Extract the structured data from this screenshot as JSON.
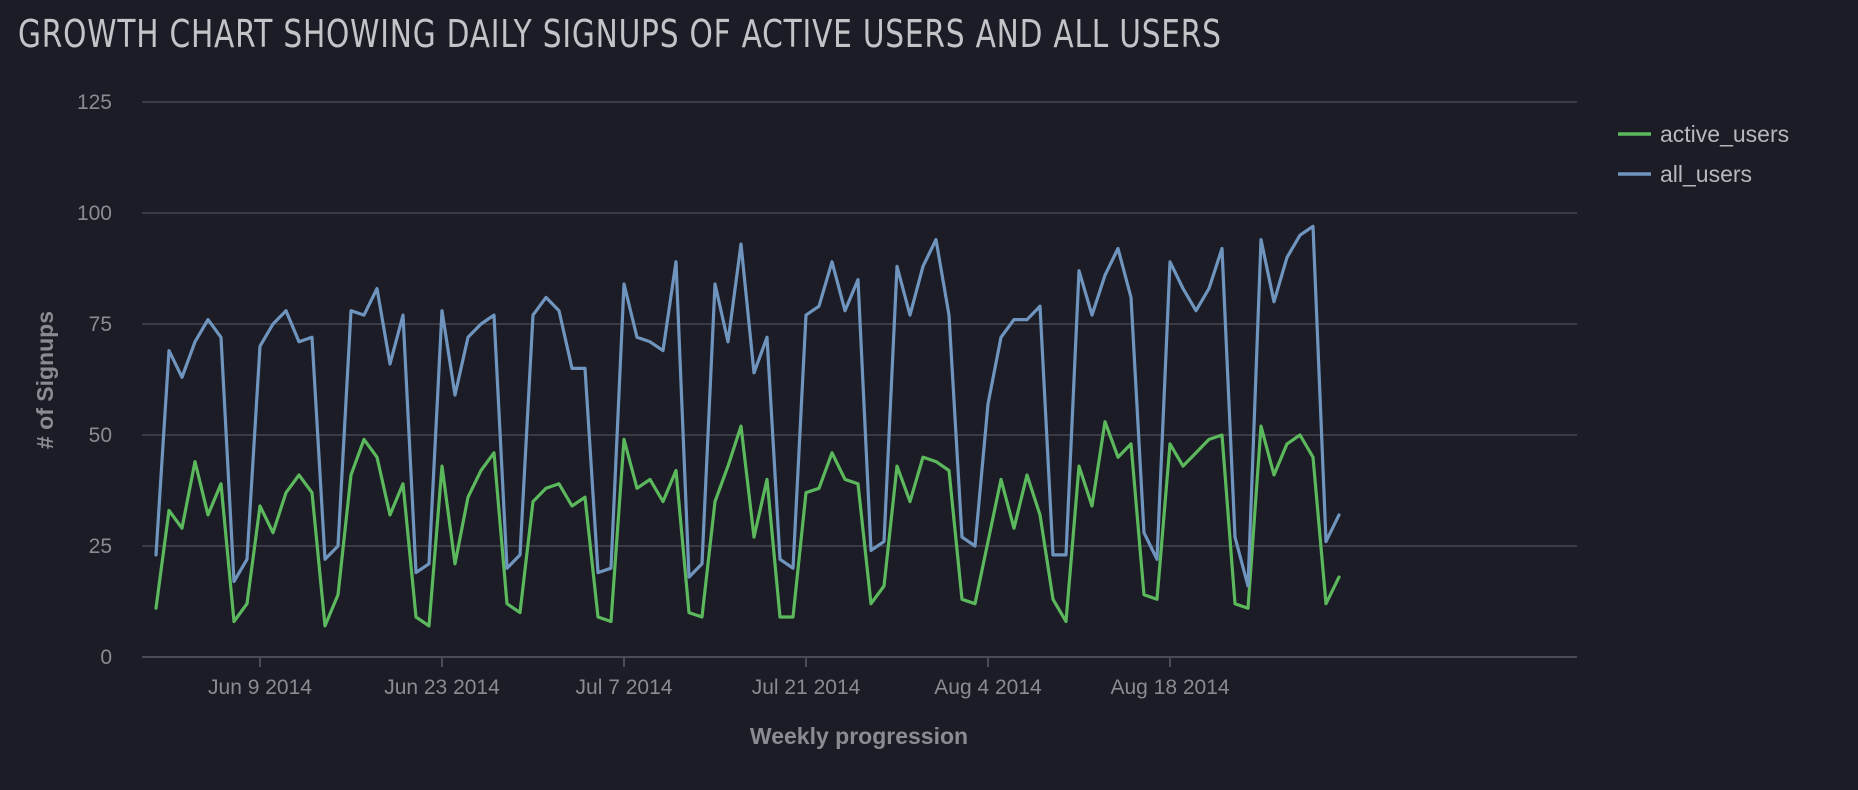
{
  "chart_data": {
    "type": "line",
    "title": "GROWTH CHART SHOWING DAILY SIGNUPS OF ACTIVE USERS AND ALL USERS",
    "xlabel": "Weekly progression",
    "ylabel": "# of Signups",
    "ylim": [
      0,
      125
    ],
    "yticks": [
      0,
      25,
      50,
      75,
      100,
      125
    ],
    "xlim": [
      "2014-06-01",
      "2014-09-02"
    ],
    "xticks": [
      {
        "date": "2014-06-09",
        "label": "Jun 9 2014"
      },
      {
        "date": "2014-06-23",
        "label": "Jun 23 2014"
      },
      {
        "date": "2014-07-07",
        "label": "Jul 7 2014"
      },
      {
        "date": "2014-07-21",
        "label": "Jul 21 2014"
      },
      {
        "date": "2014-08-04",
        "label": "Aug 4 2014"
      },
      {
        "date": "2014-08-18",
        "label": "Aug 18 2014"
      }
    ],
    "x_start": "2014-06-01",
    "grid": true,
    "legend_position": "top-right",
    "series": [
      {
        "name": "active_users",
        "color": "#5cb85c",
        "values": [
          11,
          33,
          29,
          44,
          32,
          39,
          8,
          12,
          34,
          28,
          37,
          41,
          37,
          7,
          14,
          41,
          49,
          45,
          32,
          39,
          9,
          7,
          43,
          21,
          36,
          42,
          46,
          12,
          10,
          35,
          38,
          39,
          34,
          36,
          9,
          8,
          49,
          38,
          40,
          35,
          42,
          10,
          9,
          35,
          43,
          52,
          27,
          40,
          9,
          9,
          37,
          38,
          46,
          40,
          39,
          12,
          16,
          43,
          35,
          45,
          44,
          42,
          13,
          12,
          26,
          40,
          29,
          41,
          32,
          13,
          8,
          43,
          34,
          53,
          45,
          48,
          14,
          13,
          48,
          43,
          46,
          49,
          50,
          12,
          11,
          52,
          41,
          48,
          50,
          45,
          12,
          18
        ]
      },
      {
        "name": "all_users",
        "color": "#6f95bf",
        "values": [
          23,
          69,
          63,
          71,
          76,
          72,
          17,
          22,
          70,
          75,
          78,
          71,
          72,
          22,
          25,
          78,
          77,
          83,
          66,
          77,
          19,
          21,
          78,
          59,
          72,
          75,
          77,
          20,
          23,
          77,
          81,
          78,
          65,
          65,
          19,
          20,
          84,
          72,
          71,
          69,
          89,
          18,
          21,
          84,
          71,
          93,
          64,
          72,
          22,
          20,
          77,
          79,
          89,
          78,
          85,
          24,
          26,
          88,
          77,
          88,
          94,
          77,
          27,
          25,
          57,
          72,
          76,
          76,
          79,
          23,
          23,
          87,
          77,
          86,
          92,
          81,
          28,
          22,
          89,
          83,
          78,
          83,
          92,
          27,
          16,
          94,
          80,
          90,
          95,
          97,
          26,
          32
        ]
      }
    ]
  }
}
